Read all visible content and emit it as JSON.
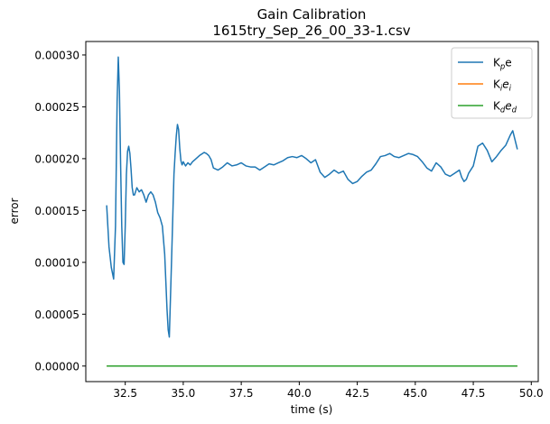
{
  "chart_data": {
    "type": "line",
    "title": "Gain Calibration",
    "subtitle": "1615try_Sep_26_00_33-1.csv",
    "xlabel": "time (s)",
    "ylabel": "error",
    "xlim": [
      30.8,
      50.3
    ],
    "ylim": [
      -1.5e-05,
      0.000313
    ],
    "x_ticks": [
      32.5,
      35.0,
      37.5,
      40.0,
      42.5,
      45.0,
      47.5,
      50.0
    ],
    "x_tick_labels": [
      "32.5",
      "35.0",
      "37.5",
      "40.0",
      "42.5",
      "45.0",
      "47.5",
      "50.0"
    ],
    "y_ticks": [
      0,
      5e-05,
      0.0001,
      0.00015,
      0.0002,
      0.00025,
      0.0003
    ],
    "y_tick_labels": [
      "0.00000",
      "0.00005",
      "0.00010",
      "0.00015",
      "0.00020",
      "0.00025",
      "0.00030"
    ],
    "grid": false,
    "legend_position": "top-right",
    "series": [
      {
        "name": "K_p e",
        "legend": {
          "base": "K",
          "sub": "p",
          "tail": "e",
          "tail_italic": false
        },
        "color": "#1f77b4",
        "x": [
          31.7,
          31.8,
          31.9,
          32.0,
          32.08,
          32.15,
          32.2,
          32.25,
          32.3,
          32.35,
          32.4,
          32.45,
          32.5,
          32.55,
          32.6,
          32.65,
          32.7,
          32.75,
          32.8,
          32.85,
          32.9,
          33.0,
          33.1,
          33.2,
          33.3,
          33.4,
          33.5,
          33.6,
          33.7,
          33.8,
          33.9,
          34.0,
          34.1,
          34.2,
          34.3,
          34.35,
          34.4,
          34.5,
          34.6,
          34.65,
          34.7,
          34.75,
          34.8,
          34.85,
          34.9,
          34.95,
          35.0,
          35.1,
          35.2,
          35.3,
          35.4,
          35.5,
          35.7,
          35.9,
          36.0,
          36.1,
          36.2,
          36.3,
          36.5,
          36.7,
          36.9,
          37.1,
          37.3,
          37.5,
          37.7,
          37.9,
          38.1,
          38.3,
          38.5,
          38.7,
          38.9,
          39.1,
          39.3,
          39.5,
          39.7,
          39.9,
          40.1,
          40.3,
          40.5,
          40.7,
          40.9,
          41.1,
          41.3,
          41.5,
          41.7,
          41.9,
          42.1,
          42.3,
          42.5,
          42.7,
          42.9,
          43.1,
          43.3,
          43.5,
          43.7,
          43.9,
          44.1,
          44.3,
          44.5,
          44.7,
          44.9,
          45.1,
          45.3,
          45.5,
          45.7,
          45.9,
          46.1,
          46.3,
          46.5,
          46.7,
          46.9,
          47.0,
          47.1,
          47.2,
          47.3,
          47.5,
          47.7,
          47.9,
          48.1,
          48.3,
          48.5,
          48.7,
          48.9,
          49.0,
          49.1,
          49.2,
          49.3,
          49.4
        ],
        "y": [
          0.000155,
          0.000115,
          9.5e-05,
          8.4e-05,
          0.000135,
          0.000255,
          0.000298,
          0.000265,
          0.000195,
          0.000135,
          0.0001,
          9.8e-05,
          0.000135,
          0.000185,
          0.000207,
          0.000212,
          0.000205,
          0.00019,
          0.000172,
          0.000165,
          0.000165,
          0.000172,
          0.000168,
          0.00017,
          0.000165,
          0.000158,
          0.000165,
          0.000168,
          0.000165,
          0.000158,
          0.000148,
          0.000143,
          0.000135,
          0.000108,
          5.5e-05,
          3.5e-05,
          2.8e-05,
          0.000105,
          0.000185,
          0.000205,
          0.000222,
          0.000233,
          0.000228,
          0.00021,
          0.000198,
          0.000194,
          0.000197,
          0.000193,
          0.000196,
          0.000194,
          0.000197,
          0.000199,
          0.000203,
          0.000206,
          0.000205,
          0.000203,
          0.000199,
          0.000191,
          0.000189,
          0.000192,
          0.000196,
          0.000193,
          0.000194,
          0.000196,
          0.000193,
          0.000192,
          0.000192,
          0.000189,
          0.000192,
          0.000195,
          0.000194,
          0.000196,
          0.000198,
          0.000201,
          0.000202,
          0.000201,
          0.000203,
          0.0002,
          0.000196,
          0.000199,
          0.000187,
          0.000182,
          0.000185,
          0.000189,
          0.000186,
          0.000188,
          0.00018,
          0.000176,
          0.000178,
          0.000183,
          0.000187,
          0.000189,
          0.000195,
          0.000202,
          0.000203,
          0.000205,
          0.000202,
          0.000201,
          0.000203,
          0.000205,
          0.000204,
          0.000202,
          0.000197,
          0.000191,
          0.000188,
          0.000196,
          0.000192,
          0.000185,
          0.000183,
          0.000186,
          0.000189,
          0.000182,
          0.000178,
          0.00018,
          0.000186,
          0.000193,
          0.000212,
          0.000215,
          0.000208,
          0.000197,
          0.000202,
          0.000208,
          0.000213,
          0.000218,
          0.000223,
          0.000227,
          0.000218,
          0.000209
        ]
      },
      {
        "name": "K_i e_i",
        "legend": {
          "base": "K",
          "sub": "i",
          "tail": "e",
          "tail_sub": "i",
          "tail_italic": true
        },
        "color": "#ff7f0e",
        "x": [
          31.7,
          49.4
        ],
        "y": [
          0,
          0
        ]
      },
      {
        "name": "K_d e_d",
        "legend": {
          "base": "K",
          "sub": "d",
          "tail": "e",
          "tail_sub": "d",
          "tail_italic": true
        },
        "color": "#2ca02c",
        "x": [
          31.7,
          49.4
        ],
        "y": [
          0,
          0
        ]
      }
    ]
  }
}
